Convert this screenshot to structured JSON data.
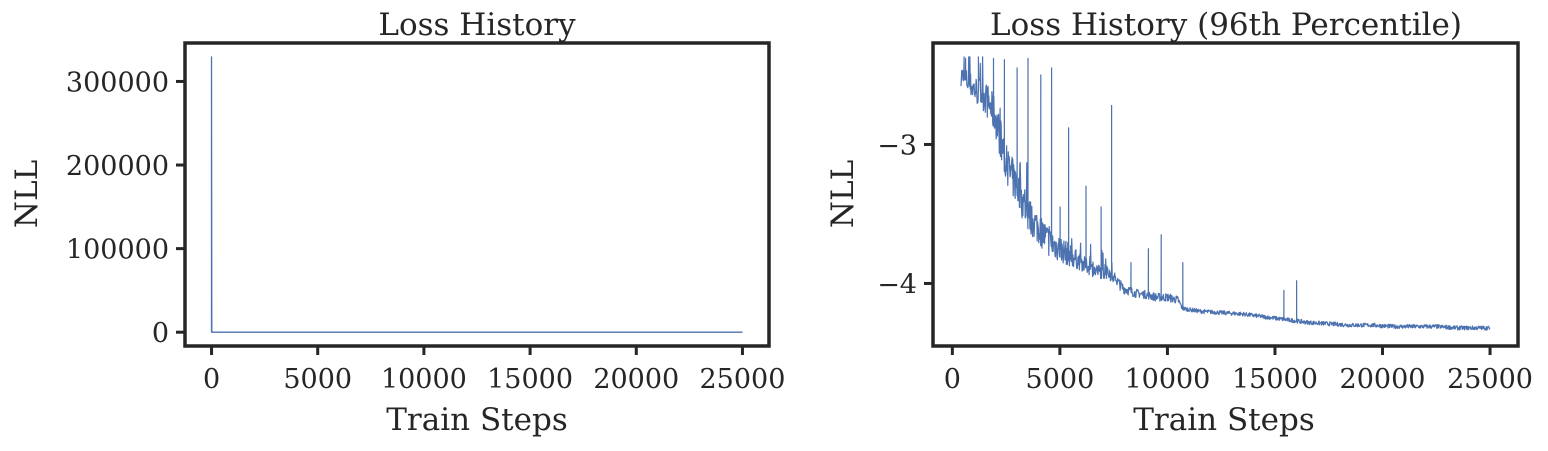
{
  "colors": {
    "line": "#4c72b0",
    "axes": "#262626",
    "background": "#ffffff"
  },
  "chart_data": [
    {
      "type": "line",
      "title": "Loss History",
      "xlabel": "Train Steps",
      "ylabel": "NLL",
      "xlim": [
        -1250,
        26250
      ],
      "ylim": [
        -16500,
        346000
      ],
      "xticks": [
        0,
        5000,
        10000,
        15000,
        20000,
        25000
      ],
      "xtick_labels": [
        "0",
        "5000",
        "10000",
        "15000",
        "20000",
        "25000"
      ],
      "yticks": [
        0,
        100000,
        200000,
        300000
      ],
      "ytick_labels": [
        "0",
        "100000",
        "200000",
        "300000"
      ],
      "grid": false,
      "series": [
        {
          "x": [
            0,
            0,
            10,
            50,
            200,
            1000,
            5000,
            10000,
            15000,
            20000,
            25000
          ],
          "y": [
            0,
            330000,
            0,
            0,
            0,
            0,
            0,
            0,
            0,
            0,
            0
          ]
        }
      ]
    },
    {
      "type": "line",
      "title": "Loss History (96th Percentile)",
      "xlabel": "Train Steps",
      "ylabel": "NLL",
      "xlim": [
        -900,
        26300
      ],
      "ylim": [
        -4.45,
        -2.27
      ],
      "xticks": [
        0,
        5000,
        10000,
        15000,
        20000,
        25000
      ],
      "xtick_labels": [
        "0",
        "5000",
        "10000",
        "15000",
        "20000",
        "25000"
      ],
      "yticks": [
        -3,
        -4
      ],
      "ytick_labels": [
        "−3",
        "−4"
      ],
      "grid": false,
      "series": [
        {
          "x": [
            400,
            1000,
            1500,
            2000,
            2500,
            3000,
            3500,
            4000,
            4500,
            5000,
            5500,
            6000,
            6500,
            7000,
            7500,
            7900,
            8500,
            9000,
            9500,
            10000,
            10500,
            10700,
            11500,
            12500,
            13500,
            14500,
            15000,
            15500,
            16000,
            16500,
            17500,
            18500,
            19500,
            20500,
            21500,
            22500,
            23500,
            24500,
            25000
          ],
          "y": [
            -2.5,
            -2.6,
            -2.65,
            -2.8,
            -3.15,
            -3.3,
            -3.5,
            -3.6,
            -3.7,
            -3.75,
            -3.8,
            -3.85,
            -3.9,
            -3.92,
            -3.95,
            -4.03,
            -4.07,
            -4.08,
            -4.1,
            -4.1,
            -4.12,
            -4.18,
            -4.2,
            -4.21,
            -4.22,
            -4.24,
            -4.25,
            -4.26,
            -4.27,
            -4.28,
            -4.29,
            -4.3,
            -4.3,
            -4.31,
            -4.31,
            -4.31,
            -4.32,
            -4.32,
            -4.32
          ],
          "noise": [
            0.08,
            0.1,
            0.12,
            0.14,
            0.15,
            0.14,
            0.13,
            0.12,
            0.11,
            0.1,
            0.08,
            0.06,
            0.05,
            0.05,
            0.04,
            0.04,
            0.03,
            0.03,
            0.03,
            0.03,
            0.03,
            0.015,
            0.015,
            0.015,
            0.015,
            0.015,
            0.015,
            0.015,
            0.015,
            0.015,
            0.015,
            0.015,
            0.015,
            0.015,
            0.015,
            0.015,
            0.015,
            0.015,
            0.015
          ]
        }
      ],
      "spikes": [
        {
          "x": 600,
          "y": -2.38
        },
        {
          "x": 1200,
          "y": -2.37
        },
        {
          "x": 1900,
          "y": -2.38
        },
        {
          "x": 2400,
          "y": -2.39
        },
        {
          "x": 3000,
          "y": -2.45
        },
        {
          "x": 3500,
          "y": -2.38
        },
        {
          "x": 4100,
          "y": -2.5
        },
        {
          "x": 4600,
          "y": -2.45
        },
        {
          "x": 5000,
          "y": -3.45
        },
        {
          "x": 5400,
          "y": -2.88
        },
        {
          "x": 6200,
          "y": -3.3
        },
        {
          "x": 6900,
          "y": -3.45
        },
        {
          "x": 7400,
          "y": -2.72
        },
        {
          "x": 8300,
          "y": -3.85
        },
        {
          "x": 9100,
          "y": -3.75
        },
        {
          "x": 9700,
          "y": -3.65
        },
        {
          "x": 10700,
          "y": -3.85
        },
        {
          "x": 15400,
          "y": -4.05
        },
        {
          "x": 16000,
          "y": -3.98
        }
      ]
    }
  ]
}
